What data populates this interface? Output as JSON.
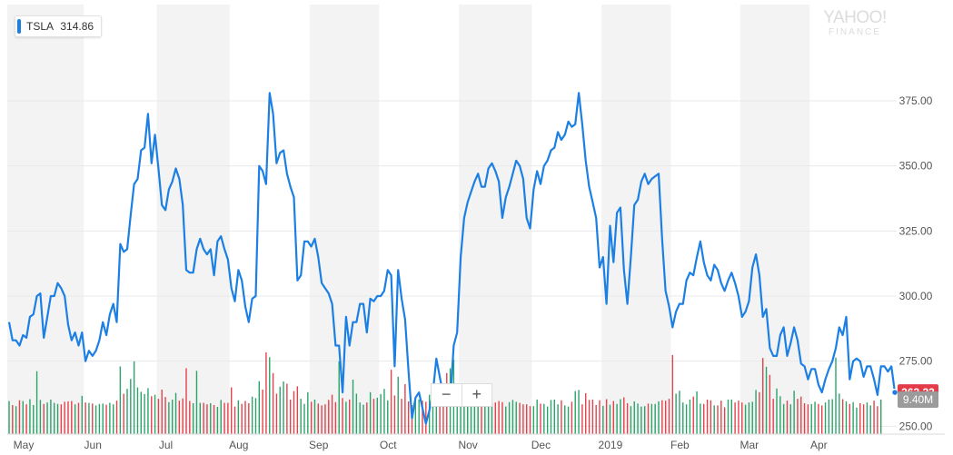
{
  "legend": {
    "ticker": "TSLA",
    "value": "314.86"
  },
  "watermark": {
    "line1": "YAHOO!",
    "line2": "FINANCE"
  },
  "zoom": {
    "minus": "−",
    "plus": "+"
  },
  "colors": {
    "line": "#1b7fe3",
    "up": "#2ba36b",
    "down": "#e5424b",
    "band": "#f3f3f3",
    "grid": "#e8e8e8",
    "last_price_bg": "#e33b47",
    "volume_bg": "#9b9b9b"
  },
  "chart_data": {
    "type": "line",
    "ticker": "TSLA",
    "ylim": [
      240,
      390
    ],
    "yticks": [
      250,
      275,
      300,
      325,
      350,
      375
    ],
    "ytick_labels": [
      "250.00",
      "275.00",
      "300.00",
      "325.00",
      "350.00",
      "375.00"
    ],
    "last_price_label": "263.23",
    "volume_label": "9.40M",
    "month_labels": [
      "May",
      "Jun",
      "Jul",
      "Aug",
      "Sep",
      "Oct",
      "Nov",
      "Dec",
      "2019",
      "Feb",
      "Mar",
      "Apr"
    ],
    "month_start_index": [
      0,
      22,
      43,
      64,
      87,
      107,
      130,
      151,
      171,
      191,
      211,
      231
    ],
    "series": [
      {
        "values": [
          290,
          283,
          283,
          281,
          285,
          284,
          292,
          293,
          300,
          301,
          284,
          292,
          300,
          300,
          305,
          303,
          300,
          289,
          283,
          286,
          281,
          286,
          275,
          279,
          277,
          279,
          283,
          290,
          285,
          293,
          297,
          290,
          320,
          317,
          318,
          331,
          343,
          345,
          356,
          357,
          370,
          351,
          362,
          349,
          335,
          333,
          341,
          344,
          349,
          345,
          335,
          310,
          309,
          309,
          318,
          322,
          318,
          316,
          318,
          308,
          321,
          323,
          318,
          314,
          303,
          298,
          310,
          306,
          296,
          290,
          299,
          300,
          350,
          348,
          343,
          378,
          370,
          351,
          355,
          356,
          347,
          342,
          338,
          306,
          308,
          321,
          321,
          319,
          322,
          315,
          305,
          303,
          301,
          297,
          281,
          281,
          263,
          292,
          281,
          290,
          290,
          297,
          297,
          286,
          299,
          298,
          300,
          300,
          302,
          310,
          308,
          273,
          310,
          299,
          291,
          271,
          253,
          261,
          263,
          257,
          251,
          256,
          263,
          276,
          269,
          262,
          259,
          260,
          281,
          286,
          315,
          330,
          336,
          340,
          344,
          347,
          342,
          342,
          349,
          351,
          348,
          344,
          330,
          338,
          342,
          347,
          352,
          350,
          345,
          330,
          326,
          341,
          348,
          343,
          350,
          352,
          356,
          357,
          363,
          360,
          362,
          367,
          365,
          366,
          378,
          366,
          352,
          342,
          336,
          330,
          311,
          315,
          297,
          327,
          313,
          332,
          334,
          310,
          297,
          315,
          335,
          337,
          344,
          347,
          343,
          345,
          346,
          347,
          322,
          302,
          296,
          288,
          294,
          297,
          297,
          306,
          309,
          308,
          315,
          321,
          313,
          308,
          306,
          312,
          310,
          305,
          302,
          306,
          309,
          305,
          300,
          292,
          294,
          298,
          311,
          316,
          308,
          292,
          295,
          280,
          277,
          277,
          285,
          288,
          277,
          282,
          288,
          283,
          274,
          273,
          268,
          272,
          272,
          266,
          263,
          268,
          272,
          275,
          280,
          288,
          285,
          292,
          268,
          275,
          276,
          275,
          269,
          273,
          273,
          268,
          262,
          273,
          273,
          271,
          273,
          263
        ]
      }
    ],
    "volume_M": [
      9.0,
      7.9,
      7.6,
      9.2,
      9.0,
      8.1,
      9.5,
      7.9,
      17.1,
      9.3,
      8.2,
      8.6,
      9.4,
      8.5,
      8.2,
      8.1,
      8.8,
      8.9,
      9.0,
      8.1,
      8.5,
      10.4,
      8.6,
      8.5,
      8.3,
      7.8,
      8.2,
      8.3,
      8.0,
      8.5,
      8.1,
      9.1,
      18.4,
      11.0,
      12.3,
      15.0,
      19.8,
      12.7,
      11.5,
      10.9,
      12.5,
      10.3,
      10.7,
      9.6,
      12.1,
      10.1,
      8.7,
      9.4,
      11.2,
      9.1,
      9.7,
      17.9,
      9.0,
      8.4,
      17.2,
      8.5,
      8.5,
      8.1,
      8.4,
      7.9,
      7.4,
      9.3,
      8.5,
      8.5,
      12.7,
      7.5,
      9.2,
      8.2,
      9.0,
      8.4,
      10.2,
      9.8,
      14.4,
      12.1,
      22.2,
      20.9,
      16.6,
      11.0,
      12.9,
      14.3,
      13.7,
      9.4,
      11.7,
      13.0,
      9.6,
      8.2,
      11.4,
      8.8,
      9.4,
      8.3,
      7.8,
      8.1,
      9.3,
      10.7,
      8.7,
      19.8,
      9.8,
      8.8,
      9.4,
      14.8,
      11.0,
      8.6,
      8.0,
      8.6,
      11.4,
      9.6,
      9.9,
      10.9,
      12.3,
      9.2,
      17.5,
      10.5,
      15.6,
      9.6,
      13.6,
      8.9,
      7.9,
      9.9,
      9.4,
      9.1,
      8.8,
      10.7,
      8.0,
      11.4,
      9.0,
      10.4,
      16.6,
      17.9,
      20.3,
      12.0,
      11.2,
      9.9,
      10.2,
      9.5,
      9.6,
      9.1,
      9.1,
      9.1,
      8.4,
      8.5,
      8.6,
      9.0,
      8.7,
      7.5,
      8.7,
      9.3,
      8.8,
      8.5,
      8.1,
      8.1,
      7.6,
      7.6,
      9.4,
      8.3,
      8.2,
      7.5,
      9.3,
      9.4,
      8.1,
      9.2,
      7.8,
      7.5,
      8.8,
      11.7,
      12.0,
      8.1,
      11.1,
      9.3,
      9.4,
      7.9,
      9.2,
      7.7,
      9.5,
      8.0,
      9.0,
      8.2,
      9.5,
      10.0,
      8.4,
      7.6,
      8.9,
      8.3,
      7.5,
      7.6,
      8.3,
      8.2,
      8.2,
      8.9,
      9.2,
      9.1,
      9.6,
      21.5,
      11.0,
      11.8,
      8.6,
      8.1,
      9.4,
      10.2,
      11.6,
      8.3,
      8.2,
      9.4,
      9.2,
      7.8,
      7.8,
      9.1,
      7.3,
      9.4,
      9.4,
      8.6,
      9.1,
      8.6,
      8.0,
      8.6,
      8.8,
      12.0,
      11.4,
      20.7,
      18.3,
      16.1,
      9.6,
      12.4,
      10.3,
      8.2,
      9.1,
      8.1,
      11.8,
      9.6,
      10.2,
      8.4,
      8.1,
      8.2,
      8.8,
      8.2,
      7.8,
      8.6,
      9.4,
      9.5,
      20.8,
      11.0,
      9.5,
      8.9,
      8.2,
      8.7,
      7.2,
      8.4,
      8.1,
      8.6,
      7.8,
      9.1,
      7.6,
      9.4
    ]
  }
}
